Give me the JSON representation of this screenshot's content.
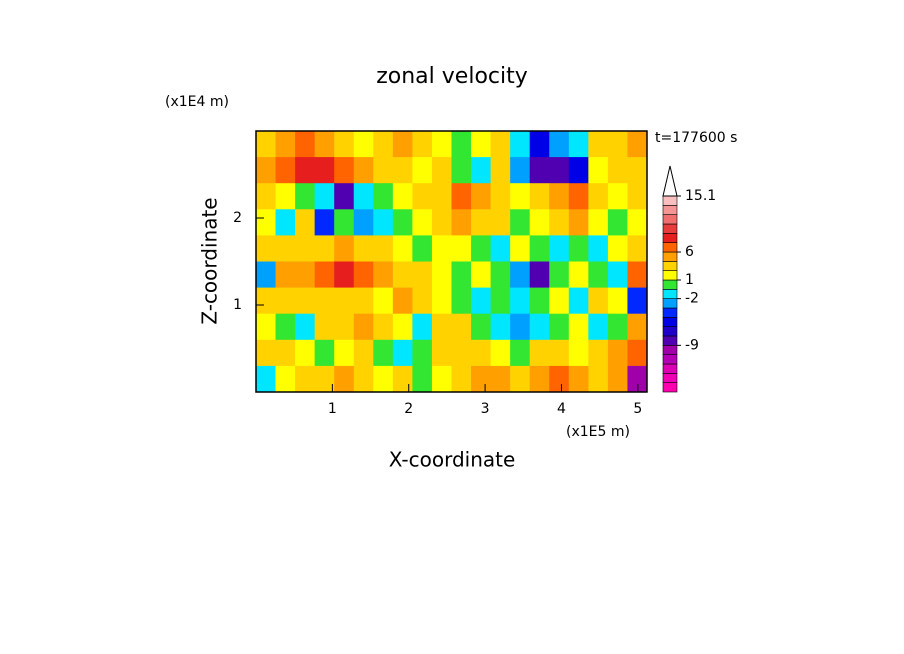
{
  "chart_data": {
    "type": "contour",
    "title": "zonal velocity",
    "x_label": "X-coordinate",
    "y_label": "Z-coordinate",
    "x_unit": "(x1E5 m)",
    "y_unit": "(x1E4 m)",
    "time_label": "t=177600 s",
    "xlim": [
      0,
      5.12
    ],
    "ylim": [
      0,
      3
    ],
    "xticks": [
      1,
      2,
      3,
      4,
      5
    ],
    "yticks": [
      1,
      2
    ],
    "z": [
      [
        3,
        4,
        6,
        5,
        3,
        1,
        3,
        4,
        2,
        1,
        0,
        1,
        2,
        -2,
        -5,
        -3,
        -1,
        3,
        2,
        4
      ],
      [
        5,
        6,
        8,
        8,
        6,
        4,
        3,
        2,
        1,
        2,
        0,
        -1,
        2,
        -3,
        -8,
        -9,
        -5,
        1,
        2,
        3
      ],
      [
        2,
        1,
        0,
        -2,
        -8,
        -2,
        0,
        1,
        2,
        3,
        6,
        5,
        3,
        1,
        2,
        4,
        7,
        3,
        1,
        2
      ],
      [
        1,
        -2,
        2,
        -4,
        0,
        -3,
        -1,
        0,
        1,
        2,
        4,
        3,
        2,
        0,
        1,
        2,
        4,
        1,
        0,
        1
      ],
      [
        2,
        3,
        3,
        2,
        4,
        3,
        2,
        1,
        0,
        1,
        1,
        0,
        -1,
        1,
        0,
        -1,
        0,
        -2,
        1,
        2
      ],
      [
        -3,
        4,
        5,
        6,
        8,
        7,
        5,
        3,
        2,
        1,
        0,
        1,
        0,
        -3,
        -8,
        0,
        1,
        0,
        -2,
        6
      ],
      [
        2,
        3,
        3,
        2,
        3,
        2,
        1,
        4,
        2,
        1,
        0,
        -1,
        0,
        -2,
        0,
        1,
        -2,
        2,
        1,
        -4
      ],
      [
        1,
        0,
        -1,
        2,
        3,
        4,
        2,
        1,
        -2,
        2,
        3,
        0,
        -2,
        -3,
        -1,
        0,
        1,
        -2,
        0,
        5
      ],
      [
        3,
        2,
        1,
        0,
        1,
        2,
        0,
        -1,
        0,
        2,
        3,
        2,
        1,
        0,
        2,
        3,
        1,
        2,
        4,
        6
      ],
      [
        -2,
        1,
        3,
        2,
        4,
        3,
        1,
        2,
        0,
        1,
        3,
        5,
        4,
        2,
        5,
        6,
        4,
        3,
        5,
        -10
      ]
    ],
    "levels": [
      -19,
      -17,
      -15,
      -13,
      -11,
      -9,
      -7,
      -5,
      -4,
      -3,
      -2,
      0,
      1,
      2,
      4,
      6,
      8,
      9.5,
      11,
      12.5,
      14,
      15.1
    ],
    "colors": [
      "#ff00b0",
      "#f000b4",
      "#dc00b4",
      "#b400b4",
      "#a000aa",
      "#5000b0",
      "#1e00c8",
      "#0000e6",
      "#0028ff",
      "#00a0ff",
      "#00e6ff",
      "#32e632",
      "#ffff00",
      "#ffd200",
      "#ffa000",
      "#ff6400",
      "#e61e1e",
      "#e63c3c",
      "#f06e6e",
      "#f59696",
      "#fabebe"
    ],
    "cbar_ticks": [
      15.1,
      6,
      1,
      -2,
      -9
    ]
  }
}
